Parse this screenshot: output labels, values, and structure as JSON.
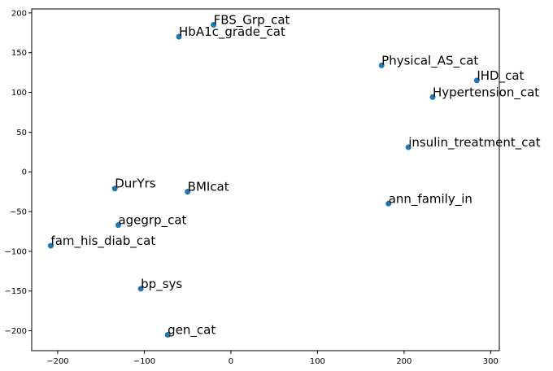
{
  "chart_data": {
    "type": "scatter",
    "title": "",
    "xlabel": "",
    "ylabel": "",
    "xlim": [
      -230,
      310
    ],
    "ylim": [
      -225,
      205
    ],
    "xticks": [
      -200,
      -100,
      0,
      100,
      200,
      300
    ],
    "yticks": [
      -200,
      -150,
      -100,
      -50,
      0,
      50,
      100,
      150,
      200
    ],
    "xtick_labels": [
      "−200",
      "−100",
      "0",
      "100",
      "200",
      "300"
    ],
    "ytick_labels": [
      "−200",
      "−150",
      "−100",
      "−50",
      "0",
      "50",
      "100",
      "150",
      "200"
    ],
    "grid": false,
    "point_color": "#1f77b4",
    "points": [
      {
        "label": "FBS_Grp_cat",
        "x": -20,
        "y": 185
      },
      {
        "label": "HbA1c_grade_cat",
        "x": -60,
        "y": 170
      },
      {
        "label": "Physical_AS_cat",
        "x": 174,
        "y": 134
      },
      {
        "label": "IHD_cat",
        "x": 284,
        "y": 115
      },
      {
        "label": "Hypertension_cat",
        "x": 233,
        "y": 94
      },
      {
        "label": "insulin_treatment_cat",
        "x": 205,
        "y": 31
      },
      {
        "label": "DurYrs",
        "x": -134,
        "y": -21
      },
      {
        "label": "BMIcat",
        "x": -50,
        "y": -25
      },
      {
        "label": "ann_family_in",
        "x": 182,
        "y": -40
      },
      {
        "label": "agegrp_cat",
        "x": -130,
        "y": -67
      },
      {
        "label": "fam_his_diab_cat",
        "x": -208,
        "y": -93
      },
      {
        "label": "bp_sys",
        "x": -104,
        "y": -147
      },
      {
        "label": "gen_cat",
        "x": -73,
        "y": -205
      }
    ]
  }
}
